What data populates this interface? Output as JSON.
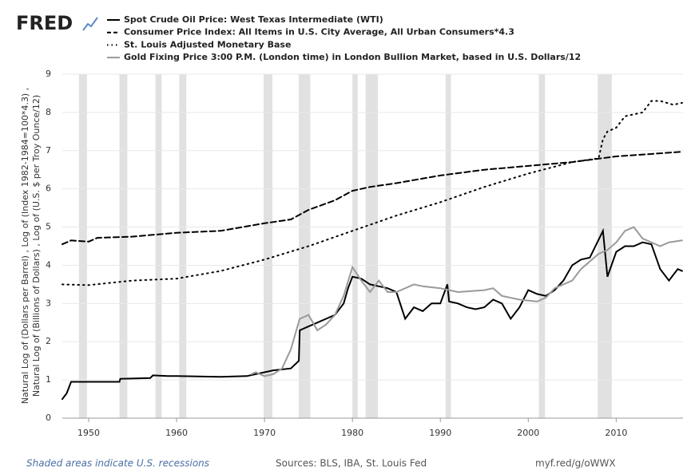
{
  "logo": "FRED",
  "chart_data": {
    "type": "line",
    "y_label": [
      "Natural Log of (Dollars per Barrel) , Log of (Index 1982-1984=100*4.3) ,",
      "Natural Log of (Billions of Dollars) , Log of (U.S. $ per Troy Ounce/12)"
    ],
    "xlim": [
      1947,
      2017.6
    ],
    "xticks": [
      1950,
      1960,
      1970,
      1980,
      1990,
      2000,
      2010
    ],
    "ylim": [
      0,
      9
    ],
    "yticks": [
      0,
      1,
      2,
      3,
      4,
      5,
      6,
      7,
      8,
      9
    ],
    "grid": true,
    "recession_note": "Shaded areas indicate U.S. recessions",
    "recession_color": "#e1e1e1",
    "recessions": [
      [
        1948.9,
        1949.8
      ],
      [
        1953.5,
        1954.4
      ],
      [
        1957.6,
        1958.3
      ],
      [
        1960.3,
        1961.1
      ],
      [
        1969.9,
        1970.9
      ],
      [
        1973.9,
        1975.2
      ],
      [
        1980.0,
        1980.6
      ],
      [
        1981.5,
        1982.9
      ],
      [
        1990.6,
        1991.2
      ],
      [
        2001.2,
        2001.9
      ],
      [
        2007.9,
        2009.5
      ]
    ],
    "series": [
      {
        "name": "Spot Crude Oil Price: West Texas Intermediate (WTI)",
        "color": "#000000",
        "dash": "solid",
        "x": [
          1947,
          1947.5,
          1948,
          1953.5,
          1953.6,
          1957,
          1957.3,
          1959,
          1960,
          1965,
          1968,
          1969,
          1971,
          1973,
          1973.9,
          1974,
          1975,
          1976,
          1977,
          1978,
          1979,
          1979.5,
          1980,
          1981,
          1982,
          1983,
          1984,
          1985,
          1986,
          1987,
          1988,
          1989,
          1990,
          1990.8,
          1991,
          1992,
          1993,
          1994,
          1995,
          1996,
          1997,
          1998,
          1999,
          2000,
          2001,
          2002,
          2003,
          2004,
          2005,
          2006,
          2007,
          2008.5,
          2009,
          2010,
          2011,
          2012,
          2013,
          2014,
          2015,
          2016,
          2017,
          2017.5
        ],
        "values": [
          0.5,
          0.65,
          0.95,
          0.95,
          1.03,
          1.05,
          1.12,
          1.1,
          1.1,
          1.08,
          1.1,
          1.15,
          1.25,
          1.3,
          1.5,
          2.3,
          2.4,
          2.5,
          2.6,
          2.7,
          3.0,
          3.4,
          3.7,
          3.65,
          3.5,
          3.45,
          3.4,
          3.3,
          2.6,
          2.9,
          2.8,
          3.0,
          3.0,
          3.5,
          3.05,
          3.0,
          2.9,
          2.85,
          2.9,
          3.1,
          3.0,
          2.6,
          2.9,
          3.35,
          3.25,
          3.2,
          3.35,
          3.6,
          4.0,
          4.15,
          4.2,
          4.9,
          3.7,
          4.35,
          4.5,
          4.5,
          4.6,
          4.55,
          3.9,
          3.6,
          3.9,
          3.85
        ]
      },
      {
        "name": "Consumer Price Index: All Items in U.S. City Average, All Urban Consumers*4.3",
        "color": "#000000",
        "dash": "dashed",
        "x": [
          1947,
          1948,
          1950,
          1951,
          1955,
          1960,
          1965,
          1970,
          1973,
          1975,
          1978,
          1980,
          1982,
          1985,
          1990,
          1995,
          2000,
          2005,
          2010,
          2017.5
        ],
        "values": [
          4.55,
          4.65,
          4.62,
          4.72,
          4.75,
          4.85,
          4.9,
          5.1,
          5.2,
          5.45,
          5.7,
          5.95,
          6.05,
          6.15,
          6.35,
          6.5,
          6.6,
          6.7,
          6.85,
          6.97
        ]
      },
      {
        "name": "St. Louis Adjusted Monetary Base",
        "color": "#000000",
        "dash": "dotted",
        "x": [
          1947,
          1950,
          1955,
          1960,
          1965,
          1970,
          1975,
          1980,
          1985,
          1990,
          1995,
          2000,
          2005,
          2008,
          2008.5,
          2009,
          2010,
          2011,
          2013,
          2014,
          2015,
          2016.5,
          2017.5
        ],
        "values": [
          3.5,
          3.48,
          3.6,
          3.65,
          3.85,
          4.15,
          4.5,
          4.9,
          5.3,
          5.65,
          6.05,
          6.4,
          6.7,
          6.8,
          7.3,
          7.5,
          7.6,
          7.9,
          8.0,
          8.3,
          8.3,
          8.2,
          8.25
        ]
      },
      {
        "name": "Gold Fixing Price 3:00 P.M. (London time) in London Bullion Market, based in U.S. Dollars/12",
        "color": "#9a9a9a",
        "dash": "solid",
        "x": [
          1968.5,
          1969,
          1970,
          1971,
          1972,
          1973,
          1974,
          1975,
          1976,
          1977,
          1978,
          1979,
          1980,
          1981,
          1982,
          1983,
          1984,
          1985,
          1987,
          1988,
          1990,
          1992,
          1995,
          1996,
          1997,
          1999,
          2001,
          2002,
          2003,
          2005,
          2006,
          2008,
          2009,
          2010,
          2011,
          2012,
          2013,
          2014,
          2015,
          2016,
          2017.5
        ],
        "values": [
          1.15,
          1.2,
          1.1,
          1.15,
          1.3,
          1.8,
          2.6,
          2.7,
          2.3,
          2.45,
          2.7,
          3.2,
          3.95,
          3.6,
          3.3,
          3.6,
          3.3,
          3.3,
          3.5,
          3.45,
          3.4,
          3.3,
          3.35,
          3.4,
          3.2,
          3.1,
          3.05,
          3.15,
          3.4,
          3.6,
          3.9,
          4.3,
          4.4,
          4.6,
          4.9,
          5.0,
          4.7,
          4.6,
          4.5,
          4.6,
          4.65
        ]
      }
    ],
    "sources": "Sources: BLS, IBA, St. Louis Fed",
    "link": "myf.red/g/oWWX"
  }
}
